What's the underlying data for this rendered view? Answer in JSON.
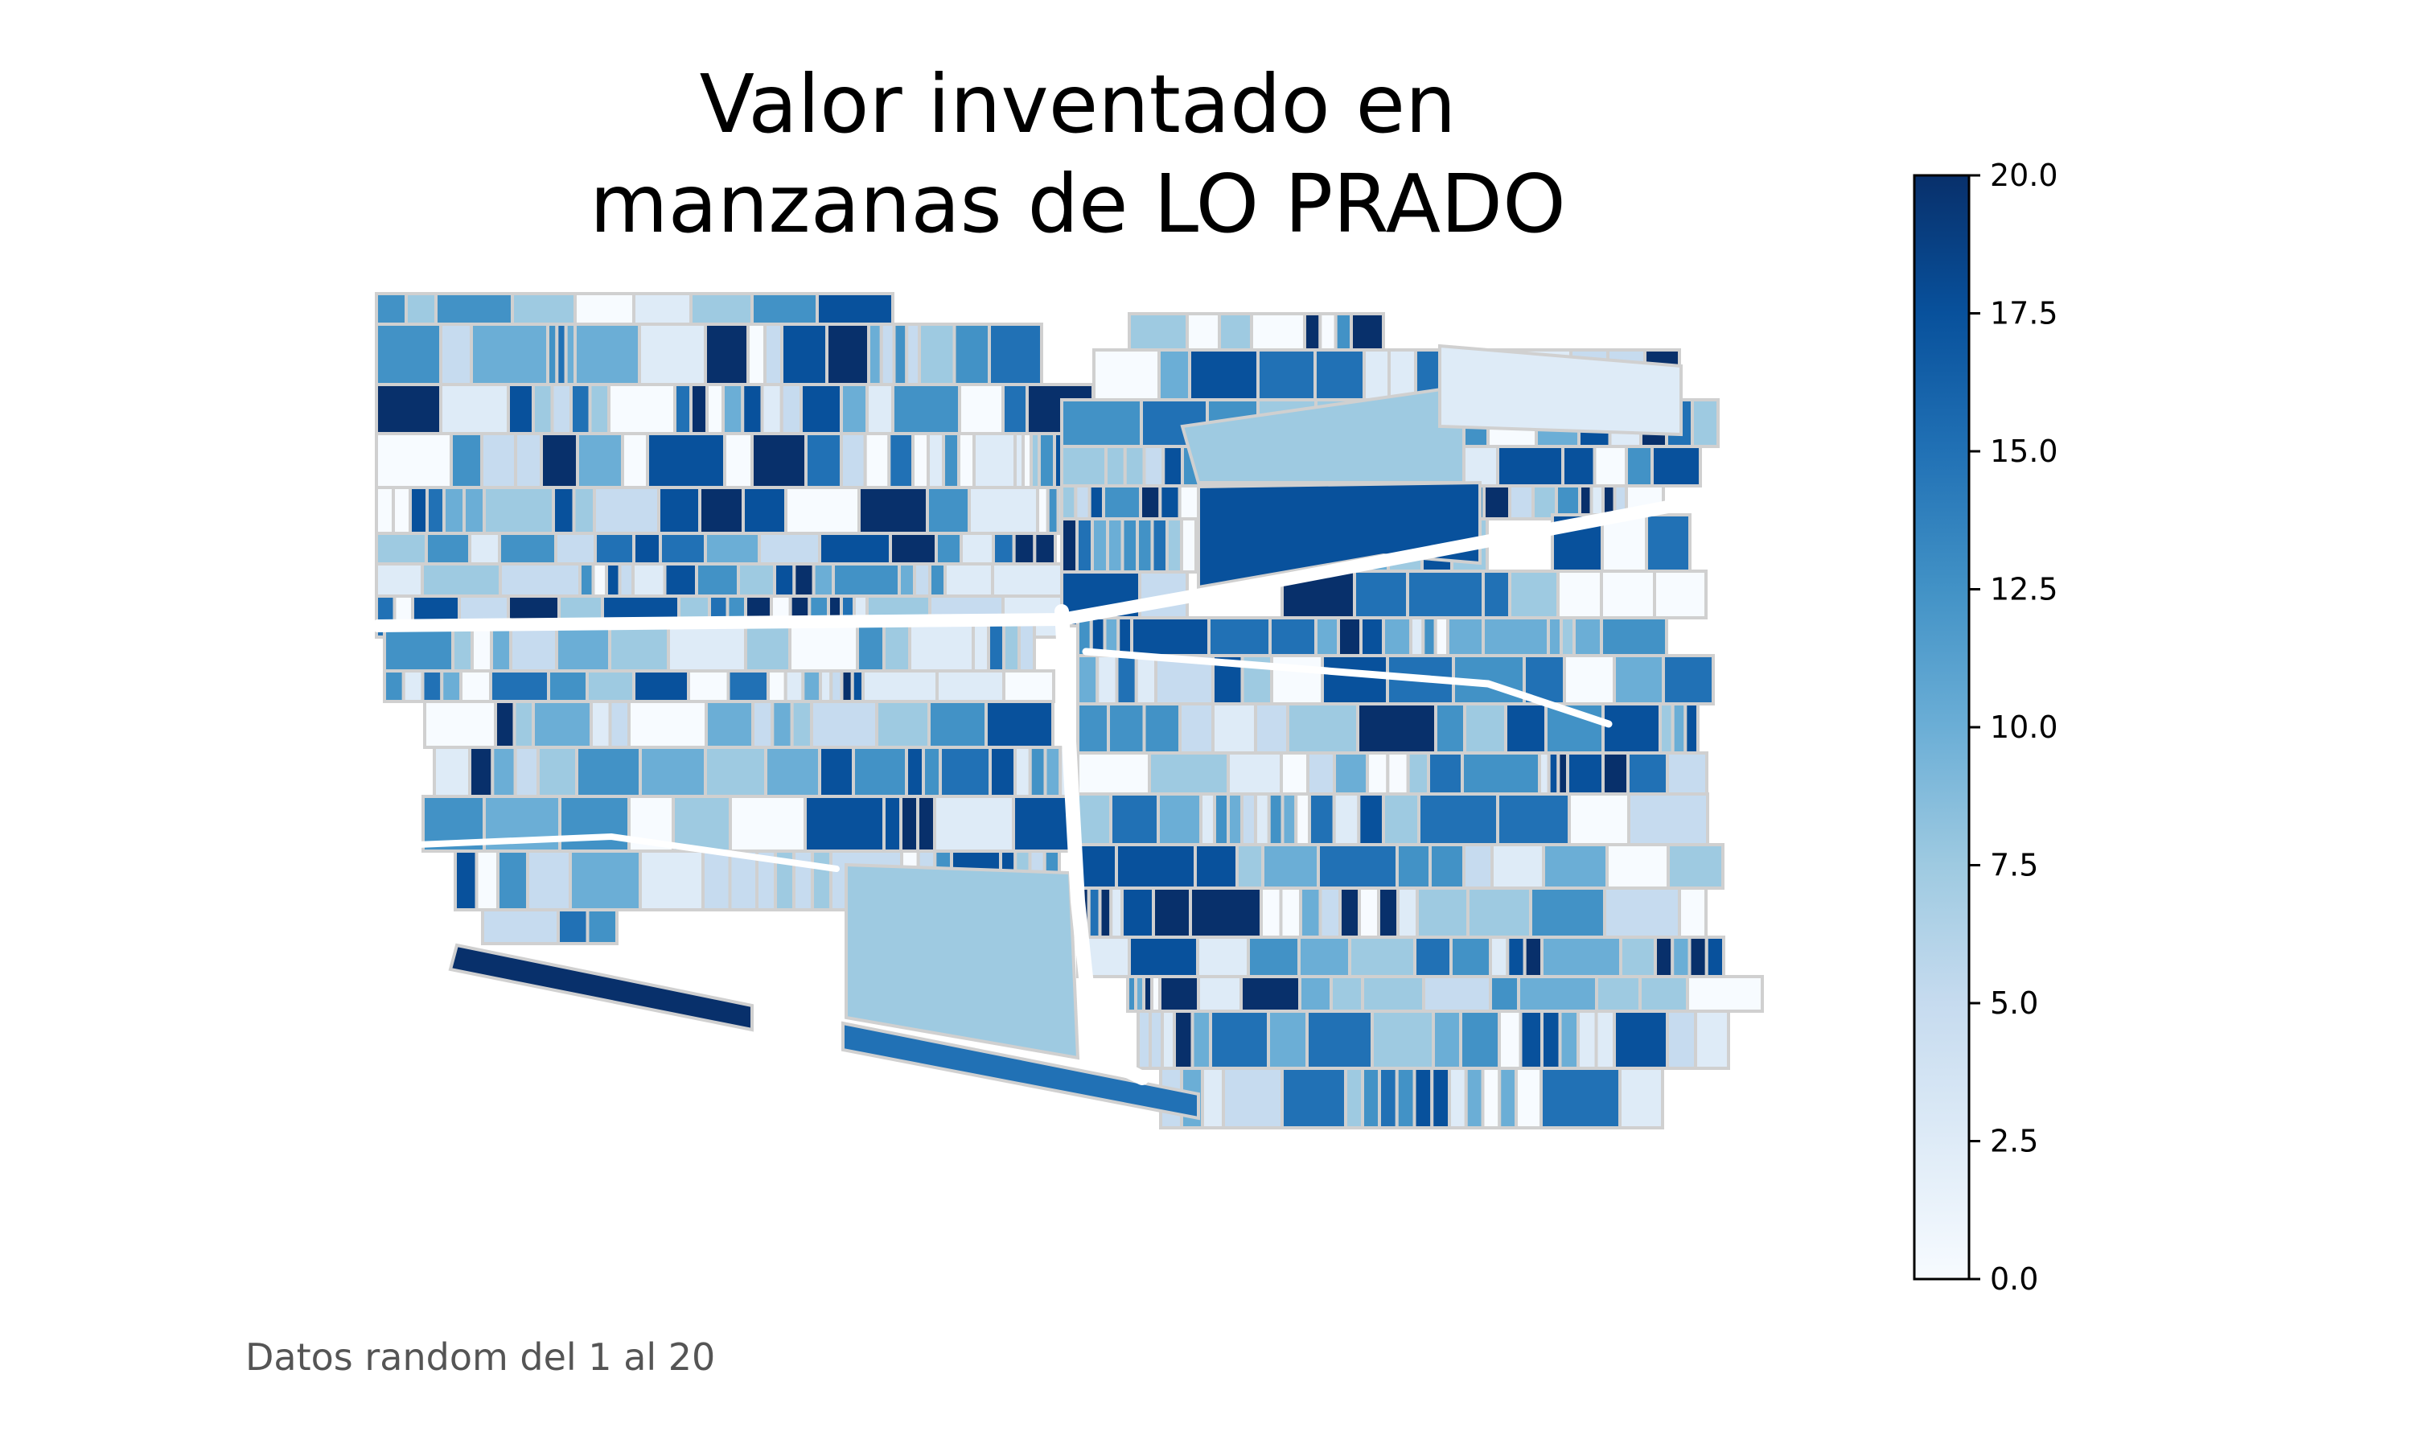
{
  "title": {
    "line1": "Valor inventado en",
    "line2": "manzanas de LO PRADO"
  },
  "caption": "Datos random del 1 al 20",
  "colorbar": {
    "min": 0.0,
    "max": 20.0,
    "ticks": [
      "0.0",
      "2.5",
      "5.0",
      "7.5",
      "10.0",
      "12.5",
      "15.0",
      "17.5",
      "20.0"
    ],
    "colormap": "Blues",
    "colors": [
      "#f7fbff",
      "#deebf7",
      "#c6dbef",
      "#9ecae1",
      "#6baed6",
      "#4292c6",
      "#2171b5",
      "#08519c",
      "#08306b"
    ]
  },
  "map": {
    "edge_color": "#d0d0d0",
    "road_color": "#ffffff"
  }
}
